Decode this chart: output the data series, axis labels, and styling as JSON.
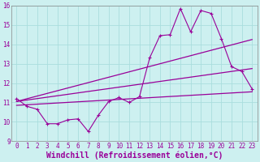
{
  "xlabel": "Windchill (Refroidissement éolien,°C)",
  "background_color": "#cdf0f0",
  "grid_color": "#aadddd",
  "line_color": "#990099",
  "xlim": [
    -0.5,
    23.5
  ],
  "ylim": [
    9,
    16
  ],
  "xticks": [
    0,
    1,
    2,
    3,
    4,
    5,
    6,
    7,
    8,
    9,
    10,
    11,
    12,
    13,
    14,
    15,
    16,
    17,
    18,
    19,
    20,
    21,
    22,
    23
  ],
  "yticks": [
    9,
    10,
    11,
    12,
    13,
    14,
    15,
    16
  ],
  "series1_x": [
    0,
    1,
    2,
    3,
    4,
    5,
    6,
    7,
    8,
    9,
    10,
    11,
    12,
    13,
    14,
    15,
    16,
    17,
    18,
    19,
    20,
    21,
    22,
    23
  ],
  "series1_y": [
    11.2,
    10.8,
    10.65,
    9.9,
    9.9,
    10.1,
    10.15,
    9.5,
    10.35,
    11.05,
    11.25,
    11.0,
    11.3,
    13.3,
    14.45,
    14.5,
    15.85,
    14.65,
    15.75,
    15.6,
    14.3,
    12.85,
    12.6,
    11.7
  ],
  "series2_x": [
    0,
    23
  ],
  "series2_y": [
    11.05,
    14.25
  ],
  "series3_x": [
    0,
    23
  ],
  "series3_y": [
    11.05,
    12.75
  ],
  "series4_x": [
    0,
    23
  ],
  "series4_y": [
    10.85,
    11.55
  ],
  "tick_fontsize": 5.5,
  "xlabel_fontsize": 7.0
}
